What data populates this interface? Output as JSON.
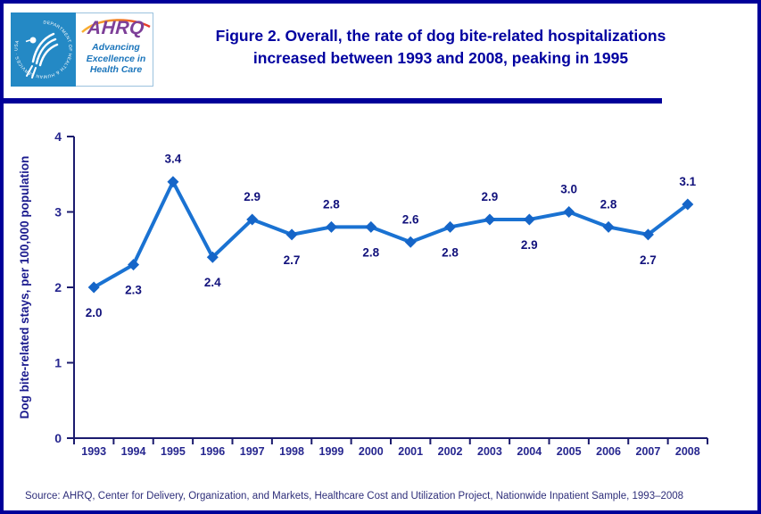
{
  "page": {
    "background": "#ffffff",
    "border_color": "#000099"
  },
  "header": {
    "logo": {
      "ahrq_text": "AHRQ",
      "tagline_lines": [
        "Advancing",
        "Excellence in",
        "Health Care"
      ],
      "seal_text": "DEPARTMENT OF HEALTH & HUMAN SERVICES · USA",
      "square_color": "#2489c5",
      "ahrq_color": "#7d3f98",
      "tagline_color": "#1b75bb"
    },
    "title_line1": "Figure 2. Overall, the rate of dog bite-related hospitalizations",
    "title_line2": "increased between 1993 and 2008, peaking in 1995",
    "title_color": "#0000a0"
  },
  "chart_data": {
    "type": "line",
    "title": "",
    "categories": [
      "1993",
      "1994",
      "1995",
      "1996",
      "1997",
      "1998",
      "1999",
      "2000",
      "2001",
      "2002",
      "2003",
      "2004",
      "2005",
      "2006",
      "2007",
      "2008"
    ],
    "series": [
      {
        "name": "Dog bite-related stays, per 100,000 population",
        "values": [
          2.0,
          2.3,
          3.4,
          2.4,
          2.9,
          2.7,
          2.8,
          2.8,
          2.6,
          2.8,
          2.9,
          2.9,
          3.0,
          2.8,
          2.7,
          3.1
        ]
      }
    ],
    "xlabel": "",
    "ylabel": "Dog bite-related stays, per 100,000 population",
    "ylim": [
      0,
      4
    ],
    "yticks": [
      0,
      1,
      2,
      3,
      4
    ],
    "grid": false,
    "legend": "none",
    "marker": "diamond",
    "data_label_decimals": 1,
    "data_label_positions": [
      "below",
      "below",
      "above",
      "below",
      "above",
      "below",
      "above",
      "below",
      "above",
      "below",
      "above",
      "below",
      "above",
      "above",
      "below",
      "above"
    ],
    "line_color": "#1a72d2",
    "marker_color": "#1565c8",
    "axis_color": "#1b1b6e",
    "data_label_color": "#12127c",
    "tick_label_color": "#26268f",
    "axis_title_color": "#1b1b8e"
  },
  "footer": {
    "source": "Source: AHRQ, Center for Delivery, Organization, and Markets, Healthcare Cost and Utilization Project, Nationwide Inpatient Sample, 1993–2008"
  }
}
